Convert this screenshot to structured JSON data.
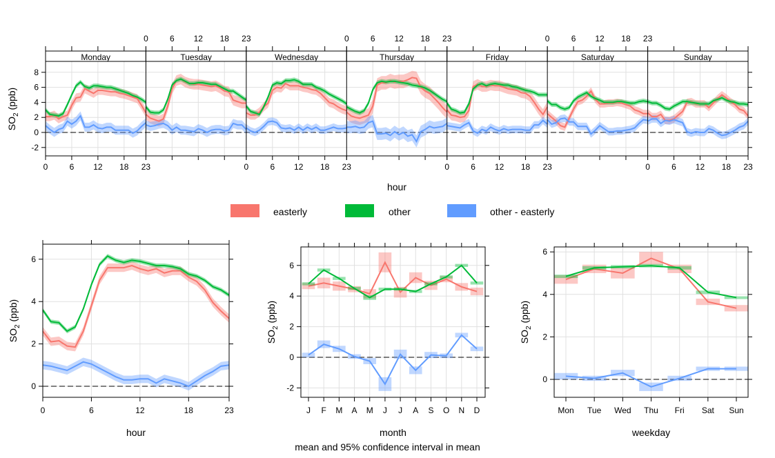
{
  "colors": {
    "easterly": "#F8766D",
    "other": "#00BA38",
    "difference": "#619CFF",
    "grid": "#e0e0e0",
    "zero_line": "#000000"
  },
  "legend": {
    "placement": "center",
    "items": [
      {
        "key": "easterly",
        "label": "easterly"
      },
      {
        "key": "other",
        "label": "other"
      },
      {
        "key": "difference",
        "label": "other - easterly"
      }
    ]
  },
  "caption": "mean and 95% confidence interval in mean",
  "chart_data": [
    {
      "type": "line",
      "id": "hour-weekday",
      "title": "",
      "xlabel": "hour",
      "ylabel": "SO2 (ppb)",
      "ylim": [
        -2.8,
        9.3
      ],
      "yticks": [
        -2,
        0,
        2,
        4,
        6,
        8
      ],
      "xticks": [
        0,
        6,
        12,
        18,
        23
      ],
      "grid": true,
      "ci": "shaded band",
      "panels": [
        {
          "day": "Monday",
          "easterly": [
            2.1,
            2.1,
            2.3,
            1.8,
            2.1,
            2.3,
            3.6,
            4.6,
            4.7,
            5.8,
            5.5,
            5.2,
            5.6,
            5.6,
            5.5,
            5.4,
            5.4,
            5.2,
            5.1,
            4.9,
            4.7,
            4.5,
            3.6,
            2.6
          ],
          "other": [
            3.0,
            2.4,
            2.3,
            2.2,
            2.5,
            3.7,
            5.0,
            6.2,
            6.7,
            6.1,
            5.9,
            6.2,
            6.2,
            6.1,
            6.0,
            6.0,
            5.8,
            5.6,
            5.4,
            5.2,
            4.9,
            4.7,
            4.4,
            4.0
          ],
          "difference": [
            0.9,
            0.4,
            0.0,
            0.4,
            0.6,
            1.5,
            1.1,
            1.5,
            2.2,
            0.7,
            0.7,
            1.0,
            0.6,
            0.5,
            0.7,
            0.7,
            0.3,
            0.3,
            0.3,
            0.3,
            -0.1,
            0.2,
            0.8,
            1.3
          ],
          "ci_easterly": 0.6,
          "ci_other": 0.3,
          "ci_difference": 0.6
        },
        {
          "day": "Tuesday",
          "easterly": [
            2.4,
            1.9,
            1.7,
            1.5,
            1.8,
            3.5,
            5.8,
            6.9,
            7.1,
            6.7,
            6.5,
            6.4,
            6.4,
            6.3,
            6.2,
            6.1,
            6.2,
            5.9,
            5.5,
            5.4,
            4.3,
            4.1,
            3.9,
            3.9
          ],
          "other": [
            3.4,
            2.7,
            2.6,
            2.6,
            3.0,
            4.4,
            6.3,
            6.9,
            7.1,
            6.8,
            6.5,
            6.5,
            6.6,
            6.6,
            6.5,
            6.4,
            6.4,
            6.1,
            5.8,
            5.5,
            5.5,
            5.1,
            4.7,
            4.3
          ],
          "difference": [
            1.0,
            0.8,
            0.9,
            1.1,
            1.2,
            0.9,
            0.3,
            0.7,
            0.3,
            0.3,
            0.2,
            0.1,
            0.5,
            0.3,
            0.0,
            0.3,
            0.4,
            0.4,
            0.2,
            0.3,
            1.2,
            1.0,
            1.0,
            0.4
          ],
          "ci_easterly": 0.7,
          "ci_other": 0.3,
          "ci_difference": 0.6
        },
        {
          "day": "Wednesday",
          "easterly": [
            2.6,
            2.3,
            2.3,
            2.7,
            3.4,
            3.9,
            5.6,
            6.0,
            5.9,
            6.5,
            6.2,
            6.2,
            6.2,
            6.0,
            5.9,
            5.7,
            5.6,
            5.2,
            4.6,
            4.0,
            3.8,
            3.4,
            3.1,
            2.9
          ],
          "other": [
            3.5,
            2.8,
            2.6,
            2.4,
            3.4,
            4.7,
            6.3,
            6.6,
            6.5,
            6.9,
            6.9,
            7.0,
            6.8,
            6.4,
            6.4,
            6.4,
            6.0,
            5.8,
            5.5,
            5.1,
            4.8,
            4.5,
            4.2,
            3.8
          ],
          "difference": [
            0.6,
            0.2,
            0.0,
            0.3,
            0.8,
            1.4,
            1.5,
            1.3,
            0.6,
            0.5,
            0.6,
            0.3,
            0.7,
            0.3,
            0.7,
            0.4,
            0.7,
            0.3,
            0.3,
            0.5,
            0.7,
            0.5,
            0.5,
            0.6
          ],
          "ci_easterly": 0.6,
          "ci_other": 0.3,
          "ci_difference": 0.5
        },
        {
          "day": "Thursday",
          "easterly": [
            2.7,
            2.2,
            2.0,
            1.9,
            2.1,
            2.3,
            3.5,
            6.3,
            6.6,
            6.6,
            6.9,
            6.7,
            6.8,
            6.8,
            7.0,
            7.3,
            7.2,
            6.0,
            5.5,
            5.2,
            4.6,
            4.0,
            3.3,
            2.7
          ],
          "other": [
            3.4,
            3.1,
            2.8,
            2.6,
            2.9,
            3.9,
            5.7,
            6.6,
            6.8,
            6.7,
            6.8,
            6.8,
            6.7,
            6.6,
            6.5,
            6.3,
            6.2,
            6.1,
            5.9,
            5.6,
            5.2,
            4.8,
            4.4,
            4.1
          ],
          "difference": [
            0.7,
            0.7,
            0.8,
            0.6,
            0.7,
            1.3,
            1.5,
            -0.2,
            -0.2,
            -0.1,
            -0.4,
            0.1,
            -0.3,
            0.0,
            -0.5,
            -0.3,
            -1.2,
            0.1,
            0.4,
            0.8,
            0.6,
            0.7,
            0.8,
            1.2
          ],
          "ci_easterly": 0.9,
          "ci_other": 0.3,
          "ci_difference": 0.8
        },
        {
          "day": "Friday",
          "easterly": [
            3.0,
            2.3,
            2.2,
            2.0,
            2.1,
            2.9,
            6.1,
            6.4,
            6.1,
            6.1,
            6.3,
            6.2,
            6.2,
            6.0,
            5.8,
            5.7,
            5.6,
            5.3,
            5.2,
            4.8,
            4.0,
            3.1,
            2.4,
            3.4
          ],
          "other": [
            3.9,
            3.1,
            2.9,
            2.6,
            2.7,
            3.8,
            5.8,
            6.3,
            6.5,
            6.2,
            6.4,
            6.5,
            6.4,
            6.3,
            6.3,
            6.1,
            6.0,
            5.8,
            5.6,
            5.5,
            5.3,
            5.0,
            5.0,
            5.0
          ],
          "difference": [
            0.9,
            0.8,
            0.7,
            0.6,
            1.0,
            1.3,
            0.2,
            -0.1,
            0.4,
            0.2,
            0.7,
            0.4,
            0.2,
            0.5,
            0.3,
            0.4,
            0.4,
            0.4,
            0.3,
            0.3,
            1.0,
            1.0,
            1.6,
            1.1
          ],
          "ci_easterly": 0.7,
          "ci_other": 0.3,
          "ci_difference": 0.5
        },
        {
          "day": "Saturday",
          "easterly": [
            2.5,
            2.0,
            1.5,
            0.9,
            0.7,
            1.9,
            3.1,
            4.1,
            4.3,
            4.8,
            5.5,
            4.4,
            3.8,
            3.8,
            3.9,
            3.9,
            4.0,
            3.9,
            3.7,
            3.5,
            3.0,
            2.8,
            2.5,
            2.5
          ],
          "other": [
            4.2,
            3.7,
            3.7,
            3.3,
            3.1,
            3.3,
            4.2,
            4.7,
            5.0,
            5.3,
            4.8,
            4.5,
            4.3,
            4.0,
            4.0,
            4.0,
            4.1,
            4.1,
            4.0,
            3.9,
            3.9,
            4.1,
            4.2,
            4.1
          ],
          "difference": [
            1.7,
            1.1,
            1.3,
            1.8,
            1.9,
            1.4,
            1.4,
            0.8,
            0.8,
            0.8,
            -0.2,
            0.3,
            0.9,
            0.5,
            0.1,
            0.1,
            0.2,
            0.2,
            0.3,
            0.4,
            0.6,
            1.2,
            1.7,
            1.6
          ],
          "ci_easterly": 0.5,
          "ci_other": 0.3,
          "ci_difference": 0.5
        },
        {
          "day": "Sunday",
          "easterly": [
            2.6,
            2.1,
            2.1,
            2.4,
            1.6,
            1.6,
            1.8,
            2.3,
            2.8,
            4.0,
            4.1,
            3.8,
            3.8,
            3.8,
            3.3,
            3.9,
            4.5,
            5.0,
            4.6,
            4.1,
            3.7,
            3.1,
            2.9,
            2.2
          ],
          "other": [
            4.1,
            3.9,
            3.9,
            3.6,
            3.2,
            3.1,
            3.5,
            3.8,
            4.1,
            4.1,
            4.0,
            3.9,
            3.8,
            3.8,
            3.8,
            4.2,
            4.4,
            4.6,
            4.3,
            4.1,
            4.0,
            3.8,
            3.8,
            3.7
          ],
          "difference": [
            1.5,
            1.8,
            1.8,
            1.2,
            1.6,
            1.5,
            1.7,
            1.5,
            1.3,
            0.1,
            -0.1,
            0.1,
            0.0,
            0.0,
            0.5,
            0.3,
            -0.1,
            -0.4,
            -0.3,
            0.0,
            0.3,
            0.7,
            0.9,
            1.5
          ],
          "ci_easterly": 0.5,
          "ci_other": 0.3,
          "ci_difference": 0.5
        }
      ],
      "strip_labels": [
        "Monday",
        "Tuesday",
        "Wednesday",
        "Thursday",
        "Friday",
        "Saturday",
        "Sunday"
      ]
    },
    {
      "type": "line",
      "id": "hour",
      "xlabel": "hour",
      "ylabel": "SO2 (ppb)",
      "ylim": [
        -0.55,
        6.6
      ],
      "yticks": [
        0,
        2,
        4,
        6
      ],
      "xticks": [
        0,
        6,
        12,
        18,
        23
      ],
      "grid": true,
      "x": [
        0,
        1,
        2,
        3,
        4,
        5,
        6,
        7,
        8,
        9,
        10,
        11,
        12,
        13,
        14,
        15,
        16,
        17,
        18,
        19,
        20,
        21,
        22,
        23
      ],
      "series": [
        {
          "name": "easterly",
          "values": [
            2.6,
            2.1,
            2.15,
            1.9,
            1.85,
            2.6,
            3.8,
            5.0,
            5.6,
            5.6,
            5.6,
            5.7,
            5.55,
            5.45,
            5.55,
            5.35,
            5.45,
            5.45,
            5.15,
            4.95,
            4.55,
            3.95,
            3.55,
            3.2
          ],
          "ci": 0.2
        },
        {
          "name": "other",
          "values": [
            3.6,
            3.05,
            3.0,
            2.6,
            2.8,
            3.65,
            4.8,
            5.75,
            6.15,
            5.95,
            5.85,
            5.95,
            5.9,
            5.8,
            5.7,
            5.7,
            5.65,
            5.55,
            5.3,
            5.2,
            5.0,
            4.7,
            4.55,
            4.3
          ],
          "ci": 0.1
        },
        {
          "name": "other - easterly",
          "values": [
            1.0,
            0.95,
            0.85,
            0.75,
            0.95,
            1.15,
            1.05,
            0.85,
            0.65,
            0.45,
            0.3,
            0.3,
            0.35,
            0.35,
            0.15,
            0.35,
            0.25,
            0.15,
            0.0,
            0.25,
            0.5,
            0.7,
            0.95,
            1.0
          ],
          "ci": 0.2
        }
      ]
    },
    {
      "type": "line",
      "id": "month",
      "xlabel": "month",
      "ylabel": "SO2 (ppb)",
      "ylim": [
        -2.6,
        7.2
      ],
      "yticks": [
        -2,
        0,
        2,
        4,
        6
      ],
      "categories": [
        "J",
        "F",
        "M",
        "A",
        "M",
        "J",
        "J",
        "A",
        "S",
        "O",
        "N",
        "D"
      ],
      "grid": true,
      "series": [
        {
          "name": "easterly",
          "values": [
            4.65,
            4.85,
            4.65,
            4.45,
            4.15,
            6.2,
            4.25,
            5.2,
            4.7,
            5.1,
            4.6,
            4.3
          ],
          "ci": [
            0.2,
            0.35,
            0.3,
            0.2,
            0.3,
            0.65,
            0.35,
            0.35,
            0.3,
            0.2,
            0.25,
            0.25
          ]
        },
        {
          "name": "other",
          "values": [
            4.8,
            5.7,
            5.15,
            4.5,
            3.9,
            4.45,
            4.45,
            4.3,
            4.8,
            5.25,
            6.0,
            4.85
          ],
          "ci": [
            0.1,
            0.1,
            0.1,
            0.1,
            0.15,
            0.1,
            0.1,
            0.1,
            0.1,
            0.1,
            0.1,
            0.1
          ]
        },
        {
          "name": "other - easterly",
          "values": [
            0.15,
            0.85,
            0.55,
            0.05,
            -0.25,
            -1.75,
            0.2,
            -0.85,
            0.15,
            0.1,
            1.45,
            0.55
          ],
          "ci": [
            0.15,
            0.25,
            0.2,
            0.15,
            0.2,
            0.45,
            0.3,
            0.25,
            0.2,
            0.15,
            0.15,
            0.15
          ]
        }
      ]
    },
    {
      "type": "line",
      "id": "weekday",
      "xlabel": "weekday",
      "ylabel": "SO2 (ppb)",
      "ylim": [
        -0.8,
        6.2
      ],
      "yticks": [
        0,
        2,
        4,
        6
      ],
      "categories": [
        "Mon",
        "Tue",
        "Wed",
        "Thu",
        "Fri",
        "Sat",
        "Sun"
      ],
      "grid": true,
      "series": [
        {
          "name": "easterly",
          "values": [
            4.7,
            5.2,
            5.0,
            5.7,
            5.2,
            3.65,
            3.35
          ],
          "ci": [
            0.2,
            0.2,
            0.25,
            0.3,
            0.2,
            0.15,
            0.15
          ]
        },
        {
          "name": "other",
          "values": [
            4.85,
            5.25,
            5.3,
            5.35,
            5.25,
            4.1,
            3.85
          ],
          "ci": [
            0.08,
            0.08,
            0.08,
            0.08,
            0.08,
            0.08,
            0.06
          ]
        },
        {
          "name": "other - easterly",
          "values": [
            0.15,
            0.05,
            0.3,
            -0.35,
            0.05,
            0.5,
            0.5
          ],
          "ci": [
            0.15,
            0.12,
            0.15,
            0.2,
            0.12,
            0.1,
            0.1
          ]
        }
      ]
    }
  ]
}
